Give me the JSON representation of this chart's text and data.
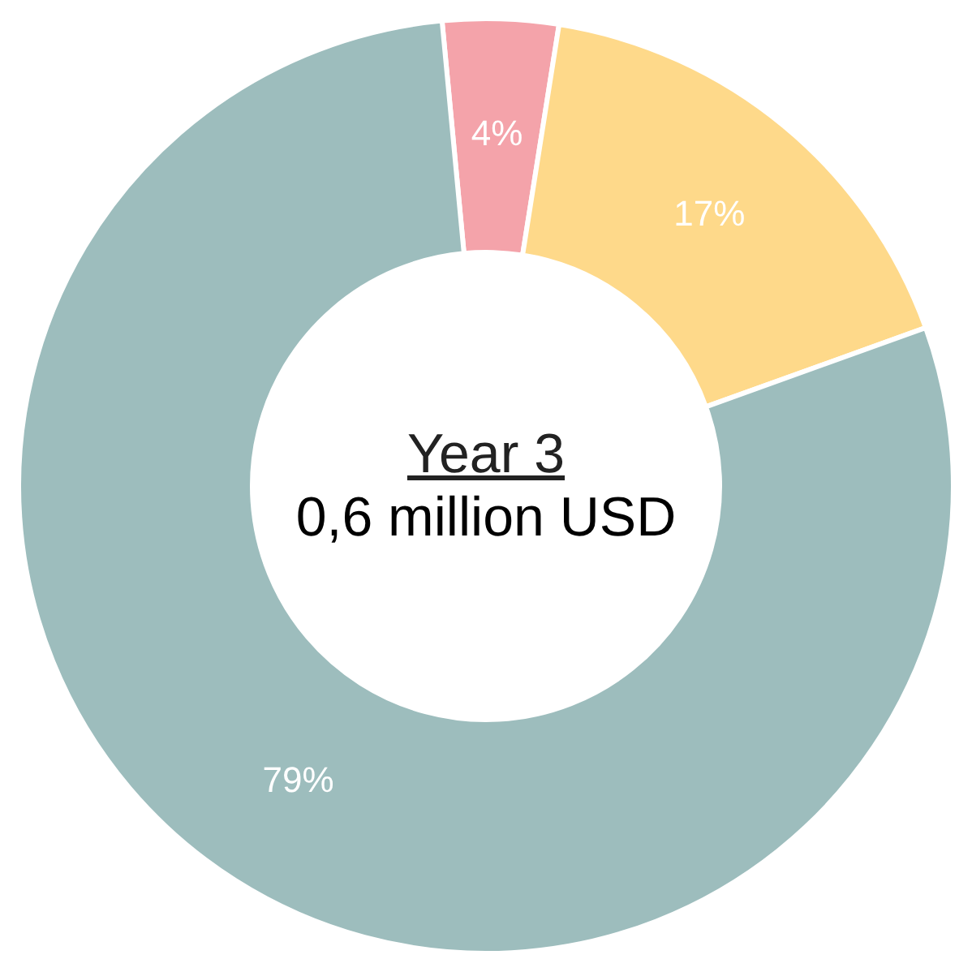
{
  "chart_data": {
    "type": "donut",
    "title": "Year 3",
    "subtitle": "0,6 million USD",
    "categories": [
      null,
      null,
      null
    ],
    "values": [
      4,
      17,
      79
    ],
    "colors": [
      "#f4a3aa",
      "#fed98a",
      "#9dbdbd"
    ],
    "value_labels": [
      "4%",
      "17%",
      "79%"
    ],
    "legend": false
  }
}
